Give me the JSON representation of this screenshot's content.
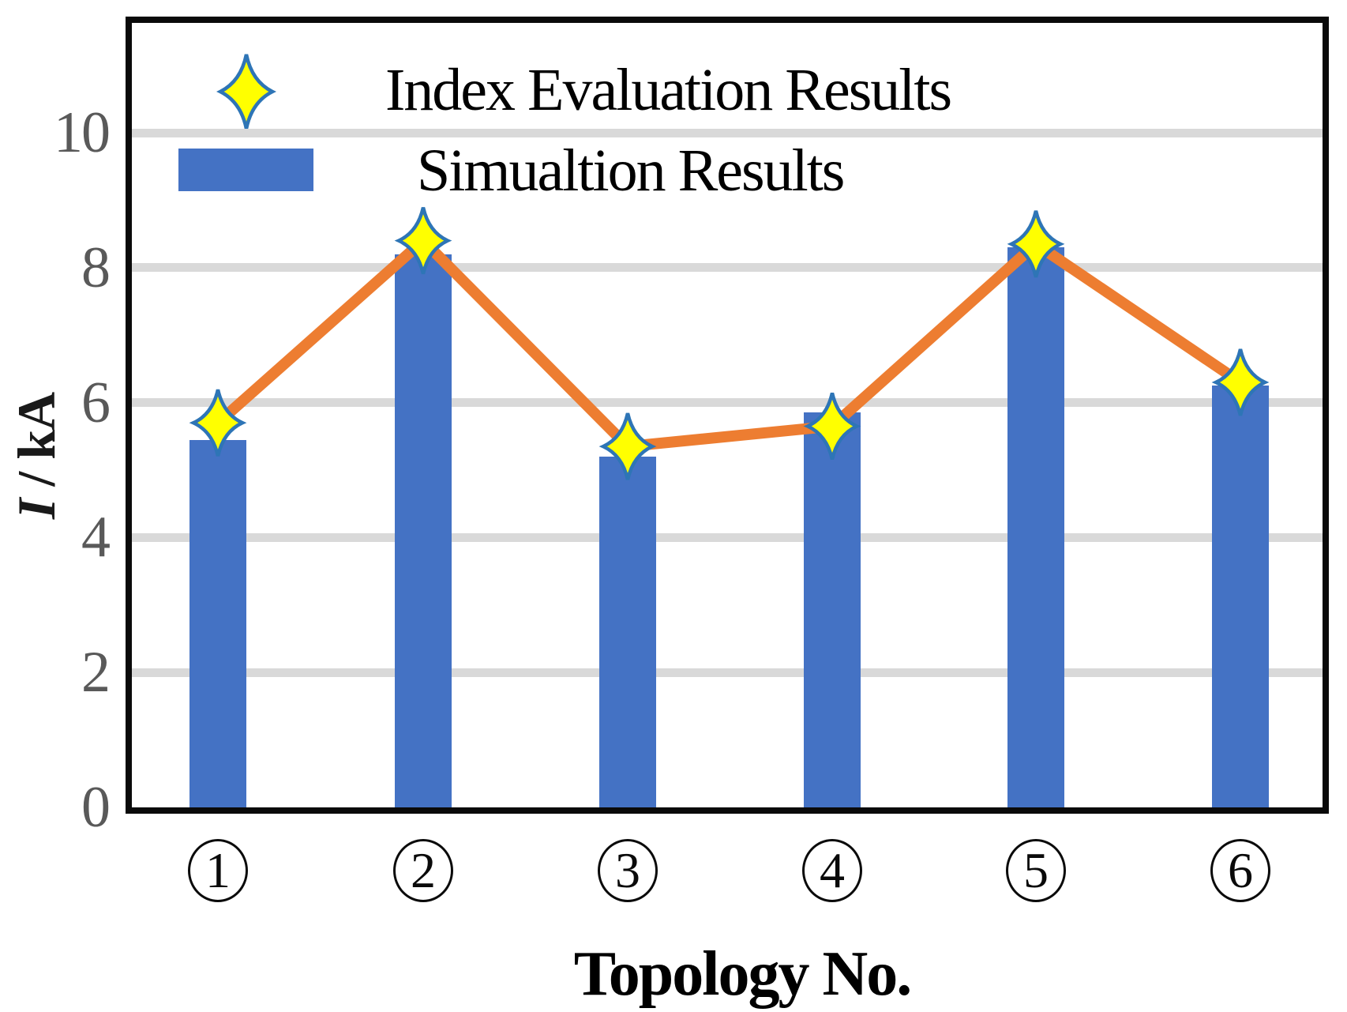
{
  "legend": {
    "items": [
      {
        "label": "Index Evaluation Results",
        "marker": "star"
      },
      {
        "label": "Simualtion Results",
        "marker": "bar-swatch"
      }
    ]
  },
  "axes": {
    "y_label_italic": "I",
    "y_label_rest": " / kA",
    "x_label": "Topology No.",
    "y_ticks": [
      0,
      2,
      4,
      6,
      8,
      10
    ]
  },
  "chart_data": {
    "type": "bar",
    "title": "",
    "xlabel": "Topology No.",
    "ylabel": "I / kA",
    "ylim": [
      0,
      11.6
    ],
    "categories": [
      "1",
      "2",
      "3",
      "4",
      "5",
      "6"
    ],
    "x_tick_style": "circled-number",
    "series": [
      {
        "name": "Simualtion Results",
        "type": "bar",
        "color": "#4472C4",
        "values": [
          5.45,
          8.2,
          5.2,
          5.85,
          8.3,
          6.25
        ]
      },
      {
        "name": "Index Evaluation Results",
        "type": "line-with-star-markers",
        "color": "#ED7D31",
        "marker_fill": "#FFFF00",
        "marker_stroke": "#2E75B6",
        "values": [
          5.7,
          8.4,
          5.35,
          5.65,
          8.35,
          6.3
        ]
      }
    ],
    "gridlines_at": [
      2,
      4,
      6,
      8,
      10
    ],
    "grid_on": true,
    "grid_color": "#D9D9D9",
    "tick_label_color": "#595959",
    "legend_position": "top-left-inside"
  }
}
